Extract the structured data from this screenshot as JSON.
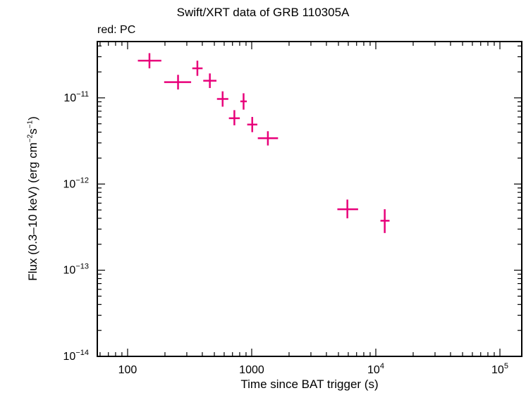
{
  "chart_data": {
    "type": "scatter",
    "title": "Swift/XRT data of GRB 110305A",
    "subtitle": "red: PC",
    "xlabel": "Time since BAT trigger (s)",
    "ylabel": {
      "prefix": "Flux (0.3–10 keV) (erg cm",
      "exp1": "−2",
      "mid": "s",
      "exp2": "−1",
      "suffix": ")"
    },
    "x_scale": "log",
    "y_scale": "log",
    "xlim": [
      57,
      150000
    ],
    "ylim": [
      1e-14,
      4.5e-11
    ],
    "x_ticks": [
      {
        "value": 100,
        "base": "100",
        "exp": ""
      },
      {
        "value": 1000,
        "base": "1000",
        "exp": ""
      },
      {
        "value": 10000,
        "base": "10",
        "exp": "4"
      },
      {
        "value": 100000,
        "base": "10",
        "exp": "5"
      }
    ],
    "y_ticks": [
      {
        "value": 1e-14,
        "base": "10",
        "exp": "−14"
      },
      {
        "value": 1e-13,
        "base": "10",
        "exp": "−13"
      },
      {
        "value": 1e-12,
        "base": "10",
        "exp": "−12"
      },
      {
        "value": 1e-11,
        "base": "10",
        "exp": "−11"
      }
    ],
    "series": [
      {
        "color": "#e8007a",
        "points": [
          {
            "x": 150,
            "x_lo": 121,
            "x_hi": 187,
            "y": 2.7e-11,
            "y_lo": 2.2e-11,
            "y_hi": 3.3e-11
          },
          {
            "x": 255,
            "x_lo": 197,
            "x_hi": 325,
            "y": 1.52e-11,
            "y_lo": 1.25e-11,
            "y_hi": 1.85e-11
          },
          {
            "x": 365,
            "x_lo": 332,
            "x_hi": 402,
            "y": 2.2e-11,
            "y_lo": 1.8e-11,
            "y_hi": 2.7e-11
          },
          {
            "x": 460,
            "x_lo": 407,
            "x_hi": 520,
            "y": 1.58e-11,
            "y_lo": 1.3e-11,
            "y_hi": 1.92e-11
          },
          {
            "x": 583,
            "x_lo": 525,
            "x_hi": 648,
            "y": 9.7e-12,
            "y_lo": 7.9e-12,
            "y_hi": 1.19e-11
          },
          {
            "x": 725,
            "x_lo": 655,
            "x_hi": 802,
            "y": 5.8e-12,
            "y_lo": 4.8e-12,
            "y_hi": 7.2e-12
          },
          {
            "x": 860,
            "x_lo": 810,
            "x_hi": 913,
            "y": 9.1e-12,
            "y_lo": 7.3e-12,
            "y_hi": 1.13e-11
          },
          {
            "x": 1010,
            "x_lo": 920,
            "x_hi": 1110,
            "y": 4.9e-12,
            "y_lo": 4e-12,
            "y_hi": 6e-12
          },
          {
            "x": 1350,
            "x_lo": 1120,
            "x_hi": 1630,
            "y": 3.4e-12,
            "y_lo": 2.8e-12,
            "y_hi": 4.1e-12
          },
          {
            "x": 5900,
            "x_lo": 4900,
            "x_hi": 7200,
            "y": 5.1e-13,
            "y_lo": 4e-13,
            "y_hi": 6.6e-13
          },
          {
            "x": 11800,
            "x_lo": 10900,
            "x_hi": 12900,
            "y": 3.75e-13,
            "y_lo": 2.7e-13,
            "y_hi": 5.1e-13
          }
        ]
      }
    ]
  }
}
